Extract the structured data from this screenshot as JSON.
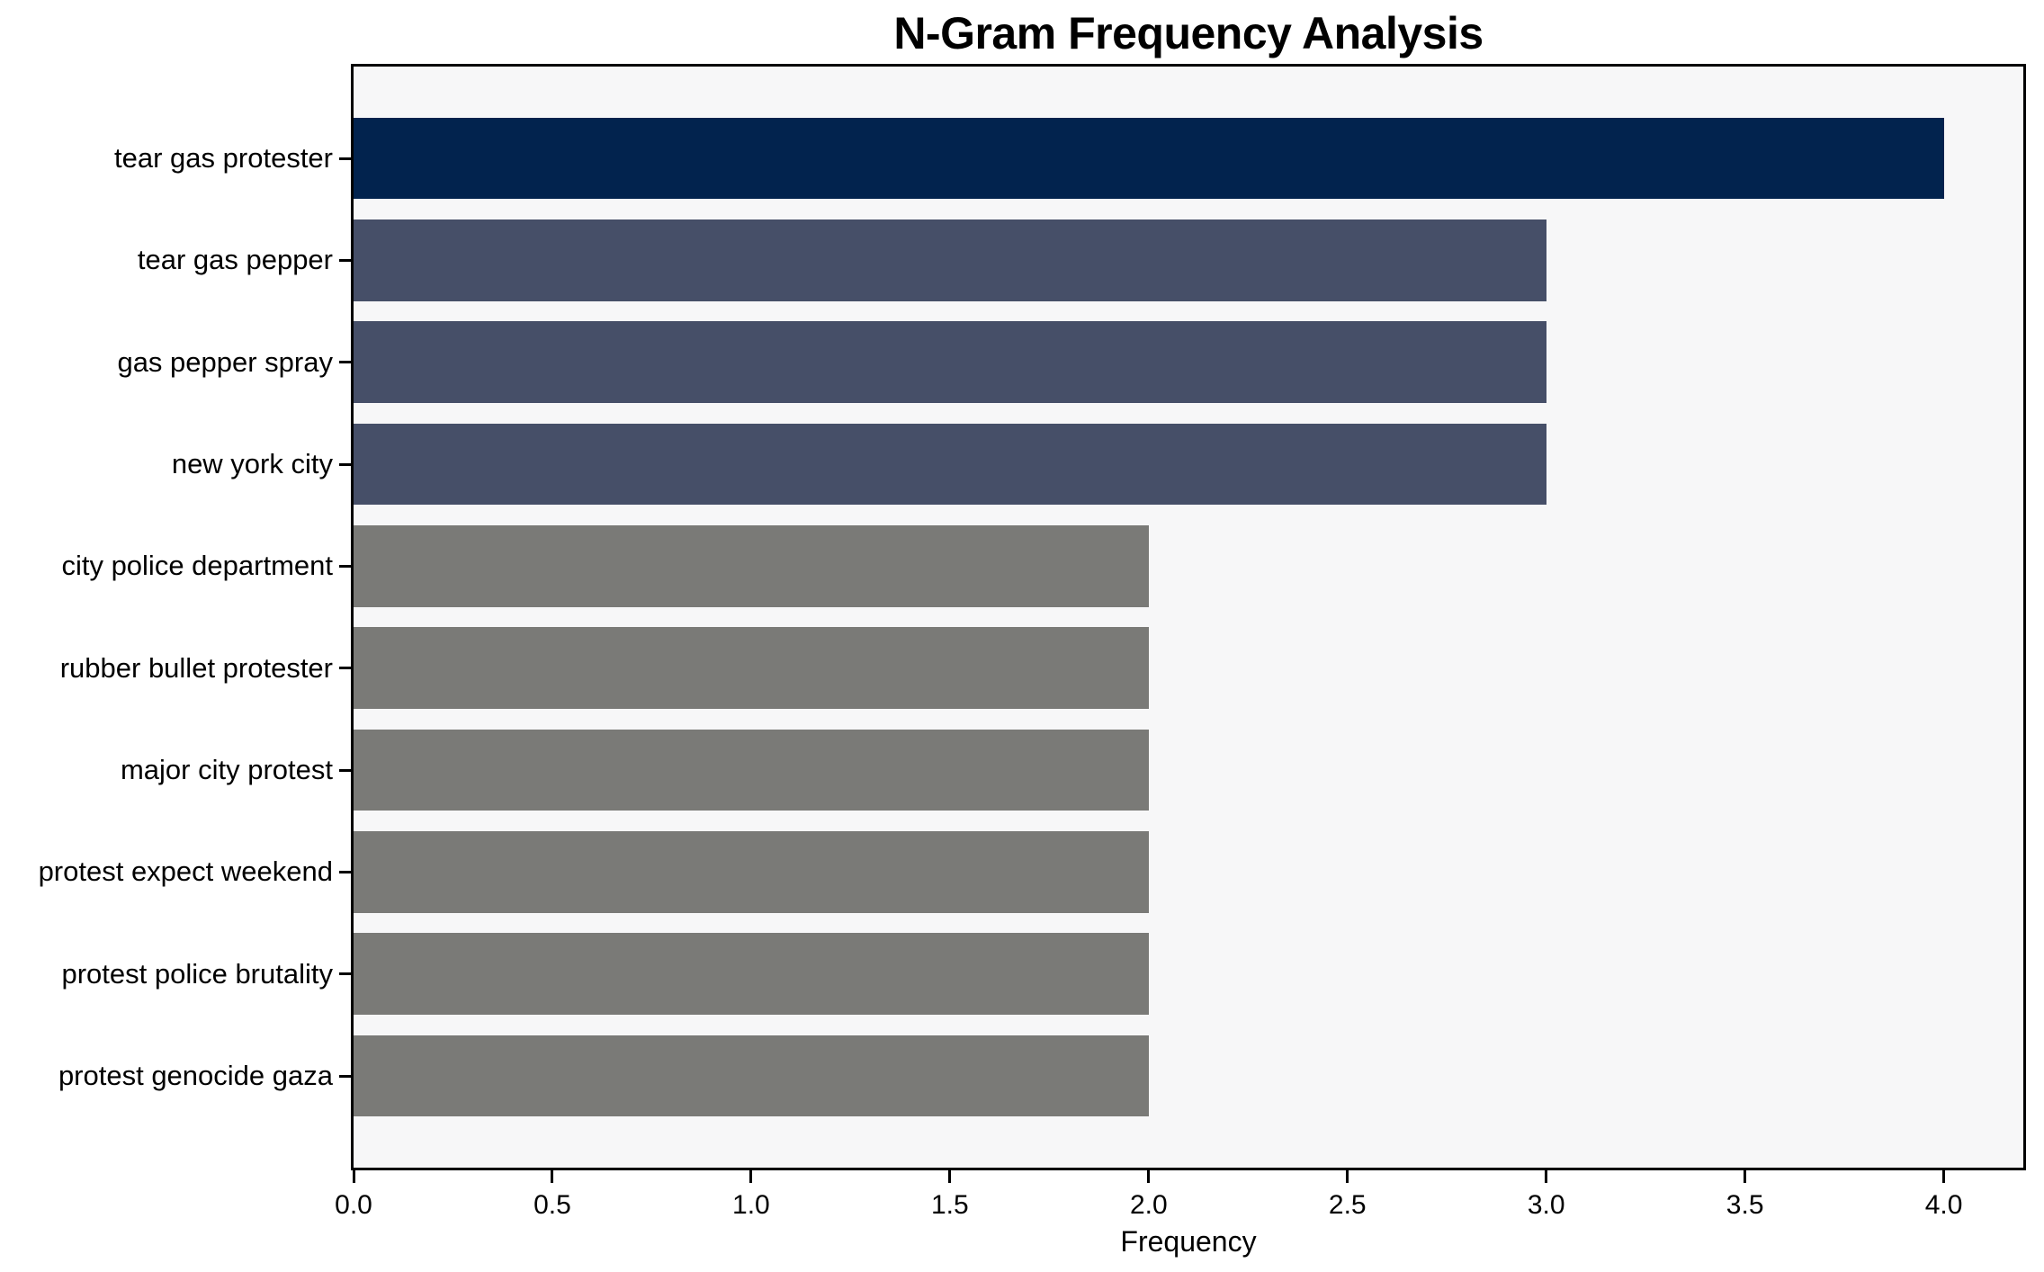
{
  "chart_data": {
    "type": "bar",
    "orientation": "horizontal",
    "title": "N-Gram Frequency Analysis",
    "xlabel": "Frequency",
    "ylabel": "",
    "categories": [
      "tear gas protester",
      "tear gas pepper",
      "gas pepper spray",
      "new york city",
      "city police department",
      "rubber bullet protester",
      "major city protest",
      "protest expect weekend",
      "protest police brutality",
      "protest genocide gaza"
    ],
    "values": [
      4,
      3,
      3,
      3,
      2,
      2,
      2,
      2,
      2,
      2
    ],
    "bar_colors": [
      "#02234e",
      "#464f68",
      "#464f68",
      "#464f68",
      "#7a7a77",
      "#7a7a77",
      "#7a7a77",
      "#7a7a77",
      "#7a7a77",
      "#7a7a77"
    ],
    "xlim": [
      0,
      4.2
    ],
    "xticks": [
      0,
      0.5,
      1.0,
      1.5,
      2.0,
      2.5,
      3.0,
      3.5,
      4.0
    ],
    "xtick_labels": [
      "0.0",
      "0.5",
      "1.0",
      "1.5",
      "2.0",
      "2.5",
      "3.0",
      "3.5",
      "4.0"
    ],
    "grid": false,
    "legend_position": "none",
    "bar_height_fraction": 0.8,
    "y_margin_units": 0.9
  },
  "style": {
    "figure_bg": "#ffffff",
    "plot_bg": "#f7f7f8",
    "axis_color": "#000000",
    "text_color": "#000000"
  }
}
